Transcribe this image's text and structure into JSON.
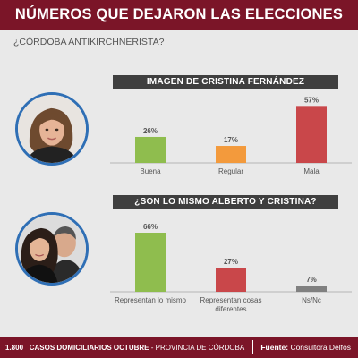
{
  "header": {
    "title": "NÚMEROS QUE DEJARON LAS ELECCIONES"
  },
  "subtitle": "¿CÓRDOBA ANTIKIRCHNERISTA?",
  "colors": {
    "brand": "#7b1528",
    "band": "#3f3f3f",
    "green": "#8fbd4e",
    "orange": "#f39a3c",
    "red": "#c9474a",
    "gray": "#808080",
    "ring": "#2f6fb5"
  },
  "footer": {
    "count": "1.800",
    "survey": "CASOS DOMICILIARIOS OCTUBRE",
    "region": "- PROVINCIA DE CÓRDOBA",
    "source_label": "Fuente:",
    "source_value": "Consultora Delfos"
  },
  "chart_data": [
    {
      "type": "bar",
      "title": "IMAGEN DE CRISTINA FERNÁNDEZ",
      "categories": [
        "Buena",
        "Regular",
        "Mala"
      ],
      "values": [
        26,
        17,
        57
      ],
      "value_labels": [
        "26%",
        "17%",
        "57%"
      ],
      "colors": [
        "#8fbd4e",
        "#f39a3c",
        "#c9474a"
      ],
      "ylim": [
        0,
        60
      ]
    },
    {
      "type": "bar",
      "title": "¿SON LO MISMO ALBERTO Y CRISTINA?",
      "categories": [
        [
          "Representan lo mismo"
        ],
        [
          "Representan cosas",
          "diferentes"
        ],
        [
          "Ns/Nc"
        ]
      ],
      "values": [
        66,
        27,
        7
      ],
      "value_labels": [
        "66%",
        "27%",
        "7%"
      ],
      "colors": [
        "#8fbd4e",
        "#c9474a",
        "#808080"
      ],
      "ylim": [
        0,
        70
      ]
    }
  ]
}
